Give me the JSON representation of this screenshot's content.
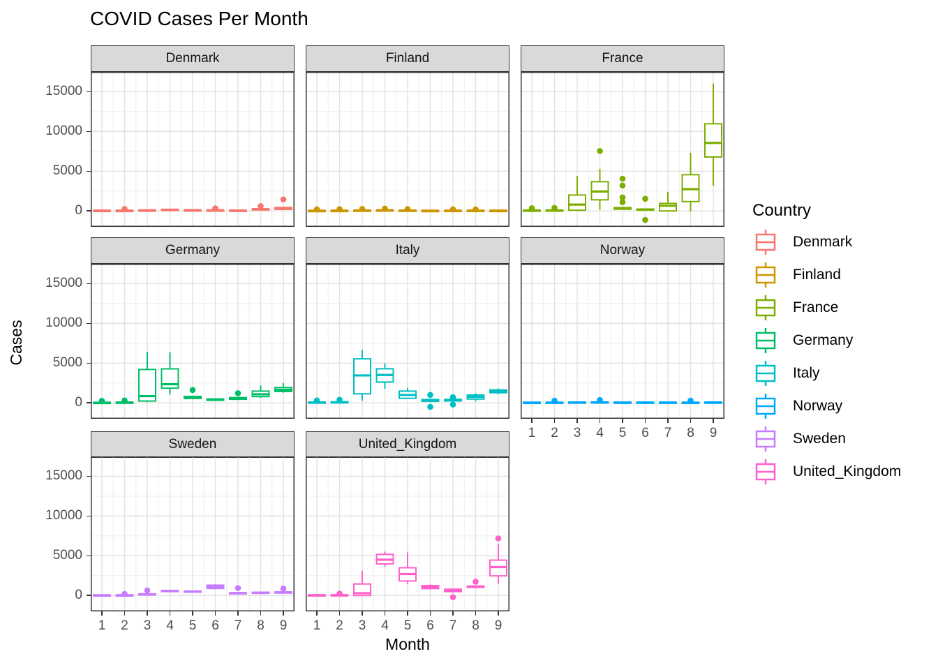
{
  "title": "COVID Cases Per Month",
  "axes": {
    "x_label": "Month",
    "y_label": "Cases",
    "y_ticks": [
      0,
      5000,
      10000,
      15000
    ],
    "y_tick_labels": [
      "0",
      "5000",
      "10000",
      "15000"
    ],
    "x_ticks": [
      1,
      2,
      3,
      4,
      5,
      6,
      7,
      8,
      9
    ],
    "x_tick_labels": [
      "1",
      "2",
      "3",
      "4",
      "5",
      "6",
      "7",
      "8",
      "9"
    ]
  },
  "legend": {
    "title": "Country",
    "entries": [
      {
        "label": "Denmark",
        "color": "#F8766D"
      },
      {
        "label": "Finland",
        "color": "#CD9600"
      },
      {
        "label": "France",
        "color": "#7CAE00"
      },
      {
        "label": "Germany",
        "color": "#00BE67"
      },
      {
        "label": "Italy",
        "color": "#00BFC4"
      },
      {
        "label": "Norway",
        "color": "#00A9FF"
      },
      {
        "label": "Sweden",
        "color": "#C77CFF"
      },
      {
        "label": "United_Kingdom",
        "color": "#FF61CC"
      }
    ]
  },
  "chart_data": {
    "type": "boxplot",
    "facet_variable": "Country",
    "x": [
      1,
      2,
      3,
      4,
      5,
      6,
      7,
      8,
      9
    ],
    "ylim": [
      -2000,
      17500
    ],
    "y_major_gridlines": [
      0,
      5000,
      10000,
      15000
    ],
    "y_minor_gridlines": [
      2500,
      7500,
      12500
    ],
    "grid": true,
    "legend_position": "right",
    "facets": [
      {
        "country": "Denmark",
        "color": "#F8766D",
        "boxes": [
          {
            "low": 10,
            "q1": 25,
            "median": 45,
            "q3": 65,
            "high": 85,
            "outliers": []
          },
          {
            "low": 0,
            "q1": 20,
            "median": 40,
            "q3": 60,
            "high": 80,
            "outliers": [
              250
            ]
          },
          {
            "low": 20,
            "q1": 45,
            "median": 75,
            "q3": 105,
            "high": 135,
            "outliers": []
          },
          {
            "low": 80,
            "q1": 115,
            "median": 155,
            "q3": 195,
            "high": 235,
            "outliers": []
          },
          {
            "low": 30,
            "q1": 60,
            "median": 95,
            "q3": 125,
            "high": 155,
            "outliers": []
          },
          {
            "low": 20,
            "q1": 50,
            "median": 85,
            "q3": 115,
            "high": 145,
            "outliers": [
              320
            ]
          },
          {
            "low": 0,
            "q1": 25,
            "median": 55,
            "q3": 85,
            "high": 115,
            "outliers": []
          },
          {
            "low": 100,
            "q1": 150,
            "median": 210,
            "q3": 265,
            "high": 320,
            "outliers": [
              600
            ]
          },
          {
            "low": 110,
            "q1": 200,
            "median": 310,
            "q3": 430,
            "high": 530,
            "outliers": [
              1450
            ]
          }
        ]
      },
      {
        "country": "Finland",
        "color": "#CD9600",
        "boxes": [
          {
            "low": 5,
            "q1": 15,
            "median": 30,
            "q3": 50,
            "high": 65,
            "outliers": [
              200
            ]
          },
          {
            "low": 5,
            "q1": 20,
            "median": 40,
            "q3": 60,
            "high": 80,
            "outliers": [
              220
            ]
          },
          {
            "low": 15,
            "q1": 35,
            "median": 60,
            "q3": 90,
            "high": 115,
            "outliers": [
              260
            ]
          },
          {
            "low": 25,
            "q1": 50,
            "median": 85,
            "q3": 120,
            "high": 155,
            "outliers": [
              300
            ]
          },
          {
            "low": 15,
            "q1": 35,
            "median": 60,
            "q3": 90,
            "high": 115,
            "outliers": [
              230
            ]
          },
          {
            "low": 5,
            "q1": 15,
            "median": 30,
            "q3": 50,
            "high": 65,
            "outliers": []
          },
          {
            "low": 5,
            "q1": 20,
            "median": 40,
            "q3": 65,
            "high": 85,
            "outliers": [
              200
            ]
          },
          {
            "low": 10,
            "q1": 25,
            "median": 45,
            "q3": 70,
            "high": 90,
            "outliers": [
              190
            ]
          },
          {
            "low": 5,
            "q1": 20,
            "median": 40,
            "q3": 60,
            "high": 80,
            "outliers": []
          }
        ]
      },
      {
        "country": "France",
        "color": "#7CAE00",
        "boxes": [
          {
            "low": 0,
            "q1": 25,
            "median": 60,
            "q3": 100,
            "high": 140,
            "outliers": [
              350
            ]
          },
          {
            "low": 0,
            "q1": 30,
            "median": 70,
            "q3": 110,
            "high": 150,
            "outliers": [
              380
            ]
          },
          {
            "low": 40,
            "q1": 90,
            "median": 800,
            "q3": 2000,
            "high": 4400,
            "outliers": []
          },
          {
            "low": 150,
            "q1": 1400,
            "median": 2450,
            "q3": 3680,
            "high": 5300,
            "outliers": [
              7550
            ]
          },
          {
            "low": 150,
            "q1": 220,
            "median": 310,
            "q3": 420,
            "high": 520,
            "outliers": [
              4050,
              3200,
              1700,
              1100
            ]
          },
          {
            "low": 50,
            "q1": 100,
            "median": 170,
            "q3": 240,
            "high": 310,
            "outliers": [
              1530,
              -1130
            ]
          },
          {
            "low": -100,
            "q1": 0,
            "median": 650,
            "q3": 950,
            "high": 2400,
            "outliers": []
          },
          {
            "low": -80,
            "q1": 1180,
            "median": 2740,
            "q3": 4560,
            "high": 7320,
            "outliers": []
          },
          {
            "low": 3180,
            "q1": 6790,
            "median": 8560,
            "q3": 10970,
            "high": 16030,
            "outliers": []
          }
        ]
      },
      {
        "country": "Germany",
        "color": "#00BE67",
        "boxes": [
          {
            "low": -60,
            "q1": -20,
            "median": 20,
            "q3": 60,
            "high": 100,
            "outliers": [
              260
            ]
          },
          {
            "low": -50,
            "q1": 0,
            "median": 40,
            "q3": 85,
            "high": 125,
            "outliers": [
              300
            ]
          },
          {
            "low": 100,
            "q1": 230,
            "median": 850,
            "q3": 4200,
            "high": 6430,
            "outliers": []
          },
          {
            "low": 1050,
            "q1": 1850,
            "median": 2350,
            "q3": 4280,
            "high": 6370,
            "outliers": []
          },
          {
            "low": 440,
            "q1": 550,
            "median": 680,
            "q3": 810,
            "high": 910,
            "outliers": [
              1620
            ]
          },
          {
            "low": 250,
            "q1": 320,
            "median": 400,
            "q3": 490,
            "high": 560,
            "outliers": []
          },
          {
            "low": 350,
            "q1": 450,
            "median": 560,
            "q3": 660,
            "high": 760,
            "outliers": [
              1210
            ]
          },
          {
            "low": 630,
            "q1": 790,
            "median": 1080,
            "q3": 1480,
            "high": 2190,
            "outliers": []
          },
          {
            "low": 1280,
            "q1": 1430,
            "median": 1650,
            "q3": 1930,
            "high": 2470,
            "outliers": []
          }
        ]
      },
      {
        "country": "Italy",
        "color": "#00BFC4",
        "boxes": [
          {
            "low": -80,
            "q1": -20,
            "median": 40,
            "q3": 100,
            "high": 160,
            "outliers": [
              300
            ]
          },
          {
            "low": -100,
            "q1": -10,
            "median": 60,
            "q3": 140,
            "high": 220,
            "outliers": [
              390
            ]
          },
          {
            "low": 280,
            "q1": 1140,
            "median": 3450,
            "q3": 5540,
            "high": 6670,
            "outliers": []
          },
          {
            "low": 1760,
            "q1": 2620,
            "median": 3510,
            "q3": 4290,
            "high": 4980,
            "outliers": []
          },
          {
            "low": 490,
            "q1": 570,
            "median": 990,
            "q3": 1480,
            "high": 1900,
            "outliers": []
          },
          {
            "low": 100,
            "q1": 200,
            "median": 310,
            "q3": 420,
            "high": 530,
            "outliers": [
              1000,
              -500
            ]
          },
          {
            "low": 150,
            "q1": 240,
            "median": 340,
            "q3": 440,
            "high": 530,
            "outliers": [
              710,
              -210
            ]
          },
          {
            "low": 200,
            "q1": 480,
            "median": 770,
            "q3": 990,
            "high": 1210,
            "outliers": []
          },
          {
            "low": 1100,
            "q1": 1280,
            "median": 1480,
            "q3": 1630,
            "high": 1810,
            "outliers": []
          }
        ]
      },
      {
        "country": "Norway",
        "color": "#00A9FF",
        "boxes": [
          {
            "low": -40,
            "q1": 0,
            "median": 35,
            "q3": 70,
            "high": 110,
            "outliers": []
          },
          {
            "low": -50,
            "q1": -5,
            "median": 35,
            "q3": 75,
            "high": 115,
            "outliers": [
              270
            ]
          },
          {
            "low": -20,
            "q1": 20,
            "median": 60,
            "q3": 100,
            "high": 140,
            "outliers": []
          },
          {
            "low": -10,
            "q1": 30,
            "median": 70,
            "q3": 115,
            "high": 155,
            "outliers": [
              360
            ]
          },
          {
            "low": -30,
            "q1": 5,
            "median": 40,
            "q3": 80,
            "high": 120,
            "outliers": []
          },
          {
            "low": -30,
            "q1": 5,
            "median": 40,
            "q3": 80,
            "high": 120,
            "outliers": []
          },
          {
            "low": -30,
            "q1": 5,
            "median": 40,
            "q3": 80,
            "high": 120,
            "outliers": []
          },
          {
            "low": -40,
            "q1": 0,
            "median": 35,
            "q3": 75,
            "high": 115,
            "outliers": [
              280
            ]
          },
          {
            "low": -20,
            "q1": 15,
            "median": 50,
            "q3": 90,
            "high": 130,
            "outliers": []
          }
        ]
      },
      {
        "country": "Sweden",
        "color": "#C77CFF",
        "boxes": [
          {
            "low": -30,
            "q1": 0,
            "median": 30,
            "q3": 65,
            "high": 95,
            "outliers": []
          },
          {
            "low": -50,
            "q1": -10,
            "median": 30,
            "q3": 70,
            "high": 110,
            "outliers": [
              190
            ]
          },
          {
            "low": 60,
            "q1": 105,
            "median": 150,
            "q3": 200,
            "high": 250,
            "outliers": [
              640
            ]
          },
          {
            "low": 480,
            "q1": 530,
            "median": 580,
            "q3": 630,
            "high": 680,
            "outliers": []
          },
          {
            "low": 380,
            "q1": 440,
            "median": 500,
            "q3": 560,
            "high": 620,
            "outliers": []
          },
          {
            "low": 800,
            "q1": 880,
            "median": 1080,
            "q3": 1300,
            "high": 1410,
            "outliers": []
          },
          {
            "low": 200,
            "q1": 250,
            "median": 300,
            "q3": 355,
            "high": 405,
            "outliers": [
              930
            ]
          },
          {
            "low": 250,
            "q1": 300,
            "median": 355,
            "q3": 410,
            "high": 470,
            "outliers": []
          },
          {
            "low": 280,
            "q1": 335,
            "median": 385,
            "q3": 445,
            "high": 505,
            "outliers": [
              870
            ]
          }
        ]
      },
      {
        "country": "United_Kingdom",
        "color": "#FF61CC",
        "boxes": [
          {
            "low": -20,
            "q1": 10,
            "median": 45,
            "q3": 80,
            "high": 115,
            "outliers": []
          },
          {
            "low": -60,
            "q1": -10,
            "median": 40,
            "q3": 90,
            "high": 140,
            "outliers": [
              230
            ]
          },
          {
            "low": -50,
            "q1": 0,
            "median": 290,
            "q3": 1450,
            "high": 3100,
            "outliers": []
          },
          {
            "low": 3630,
            "q1": 3980,
            "median": 4500,
            "q3": 5170,
            "high": 5520,
            "outliers": []
          },
          {
            "low": 1450,
            "q1": 1830,
            "median": 2700,
            "q3": 3490,
            "high": 5430,
            "outliers": []
          },
          {
            "low": 750,
            "q1": 870,
            "median": 1080,
            "q3": 1250,
            "high": 1400,
            "outliers": []
          },
          {
            "low": 350,
            "q1": 490,
            "median": 670,
            "q3": 790,
            "high": 910,
            "outliers": [
              -210
            ]
          },
          {
            "low": 950,
            "q1": 1020,
            "median": 1100,
            "q3": 1190,
            "high": 1260,
            "outliers": [
              1740
            ]
          },
          {
            "low": 1450,
            "q1": 2470,
            "median": 3575,
            "q3": 4450,
            "high": 6500,
            "outliers": [
              7180
            ]
          }
        ]
      }
    ]
  }
}
